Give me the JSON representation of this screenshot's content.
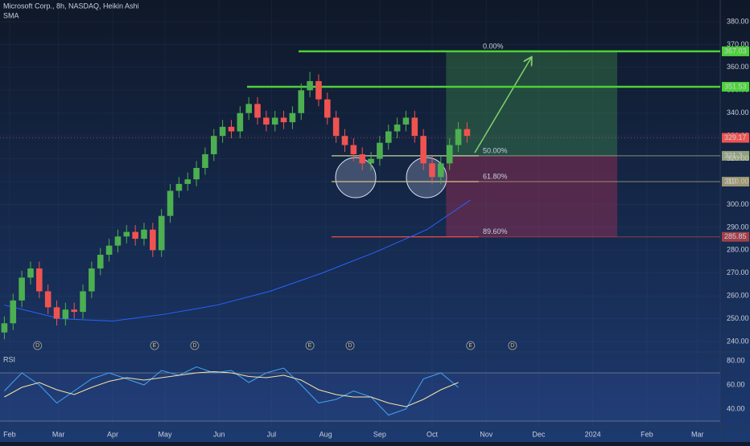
{
  "chart_data": [
    {
      "type": "candlestick",
      "title": "Microsoft Corp., 8h, NASDAQ, Heikin Ashi",
      "indicator": "SMA",
      "xlim": [
        25.5,
        438
      ],
      "xticks": [
        {
          "value": 31,
          "label": "Feb"
        },
        {
          "value": 59,
          "label": "Mar"
        },
        {
          "value": 90,
          "label": "Apr"
        },
        {
          "value": 120,
          "label": "May"
        },
        {
          "value": 151,
          "label": "Jun"
        },
        {
          "value": 181,
          "label": "Jul"
        },
        {
          "value": 212,
          "label": "Aug"
        },
        {
          "value": 243,
          "label": "Sep"
        },
        {
          "value": 273,
          "label": "Oct"
        },
        {
          "value": 304,
          "label": "Nov"
        },
        {
          "value": 334,
          "label": "Dec"
        },
        {
          "value": 365,
          "label": "2024"
        },
        {
          "value": 396,
          "label": "Feb"
        },
        {
          "value": 425,
          "label": "Mar"
        }
      ],
      "ylim": [
        235.8,
        389.5
      ],
      "yticks": [
        {
          "value": 240,
          "label": "240.00"
        },
        {
          "value": 250,
          "label": "250.00"
        },
        {
          "value": 260,
          "label": "260.00"
        },
        {
          "value": 270,
          "label": "270.00"
        },
        {
          "value": 280,
          "label": "280.00"
        },
        {
          "value": 290,
          "label": "290.00"
        },
        {
          "value": 300,
          "label": "300.00"
        },
        {
          "value": 310,
          "label": "310.00"
        },
        {
          "value": 320,
          "label": "320.00"
        },
        {
          "value": 330,
          "label": "330.00"
        },
        {
          "value": 340,
          "label": "340.00"
        },
        {
          "value": 350,
          "label": "350.00"
        },
        {
          "value": 360,
          "label": "360.00"
        },
        {
          "value": 370,
          "label": "370.00"
        },
        {
          "value": 380,
          "label": "380.00"
        }
      ],
      "up_color": "#4caf50",
      "down_color": "#ef5350",
      "x": [
        28,
        33,
        38,
        43,
        48,
        53,
        58,
        63,
        68,
        73,
        78,
        83,
        88,
        93,
        98,
        103,
        108,
        113,
        118,
        123,
        128,
        133,
        138,
        143,
        148,
        153,
        158,
        163,
        168,
        173,
        178,
        183,
        188,
        193,
        198,
        203,
        208,
        213,
        218,
        223,
        228,
        233,
        238,
        243,
        248,
        253,
        258,
        263,
        268,
        273,
        278,
        283,
        288,
        293
      ],
      "open": [
        244,
        248,
        258,
        268,
        272,
        262,
        255,
        250,
        254,
        253,
        262,
        272,
        278,
        282,
        286,
        288,
        285,
        289,
        280,
        295,
        306,
        309,
        311,
        316,
        322,
        330,
        334,
        332,
        340,
        344,
        338,
        335,
        338,
        336,
        340,
        350,
        354,
        346,
        338,
        330,
        326,
        322,
        318,
        320,
        327,
        332,
        335,
        338,
        330,
        318,
        312,
        318,
        326,
        333
      ],
      "high": [
        251,
        261,
        271,
        275,
        275,
        265,
        258,
        257,
        257,
        265,
        275,
        281,
        285,
        289,
        291,
        291,
        292,
        292,
        298,
        309,
        312,
        314,
        319,
        325,
        333,
        337,
        337,
        343,
        347,
        347,
        341,
        341,
        341,
        343,
        353,
        358,
        357,
        349,
        341,
        333,
        329,
        325,
        323,
        330,
        335,
        338,
        341,
        341,
        333,
        321,
        321,
        329,
        336,
        336
      ],
      "low": [
        241,
        245,
        255,
        265,
        259,
        252,
        247,
        247,
        250,
        250,
        259,
        269,
        275,
        279,
        283,
        282,
        282,
        277,
        277,
        292,
        303,
        306,
        308,
        313,
        319,
        327,
        329,
        329,
        337,
        335,
        332,
        332,
        333,
        333,
        337,
        347,
        343,
        335,
        327,
        323,
        319,
        315,
        315,
        317,
        324,
        329,
        332,
        327,
        315,
        309,
        309,
        315,
        323,
        327
      ],
      "close": [
        248,
        258,
        268,
        272,
        262,
        255,
        250,
        254,
        253,
        262,
        272,
        278,
        282,
        286,
        288,
        285,
        289,
        280,
        295,
        306,
        309,
        311,
        316,
        322,
        330,
        334,
        332,
        340,
        344,
        338,
        335,
        338,
        336,
        340,
        350,
        354,
        346,
        338,
        330,
        326,
        322,
        318,
        320,
        327,
        332,
        335,
        338,
        330,
        318,
        312,
        318,
        326,
        333,
        330
      ],
      "sma": {
        "color": "#2962ff",
        "x": [
          28,
          60,
          90,
          120,
          150,
          180,
          210,
          240,
          270,
          295
        ],
        "values": [
          256,
          250,
          249,
          252,
          256,
          262,
          270,
          279,
          289,
          302
        ]
      },
      "current_price": 329.17,
      "levels": [
        {
          "price": 367.03,
          "start": 196.5,
          "color": "#4cd137"
        },
        {
          "price": 351.53,
          "start": 167,
          "color": "#4cd137"
        }
      ],
      "fib": {
        "start": 215.4,
        "end": 299.7,
        "levels": [
          {
            "label": "0.00%",
            "price": 367.03,
            "color": "#4cd137"
          },
          {
            "label": "50.00%",
            "price": 321.3,
            "color": "#c9d49a"
          },
          {
            "label": "61.80%",
            "price": 310,
            "color": "#d4c48a"
          },
          {
            "label": "89.60%",
            "price": 285.85,
            "color": "#e04848"
          }
        ]
      },
      "position": {
        "start": 281,
        "end": 379,
        "entry": 321.3,
        "target": 367.03,
        "stop": 285.85
      },
      "events": [
        {
          "label": "D",
          "x": 47
        },
        {
          "label": "E",
          "x": 114
        },
        {
          "label": "D",
          "x": 137
        },
        {
          "label": "E",
          "x": 203
        },
        {
          "label": "D",
          "x": 226
        },
        {
          "label": "E",
          "x": 295
        },
        {
          "label": "D",
          "x": 319
        }
      ]
    },
    {
      "type": "line",
      "title": "RSI",
      "ylim": [
        26,
        86
      ],
      "yticks": [
        {
          "value": 40,
          "label": "40.00"
        },
        {
          "value": 60,
          "label": "60.00"
        },
        {
          "value": 80,
          "label": "80.00"
        }
      ],
      "bands": [
        70,
        30
      ],
      "x": [
        28,
        38,
        48,
        58,
        68,
        78,
        88,
        98,
        108,
        118,
        128,
        138,
        148,
        158,
        168,
        178,
        188,
        198,
        208,
        218,
        228,
        238,
        248,
        258,
        268,
        278,
        288
      ],
      "series": [
        {
          "color": "#42a5f5",
          "values": [
            55,
            70,
            60,
            45,
            55,
            65,
            70,
            65,
            60,
            72,
            68,
            75,
            70,
            72,
            62,
            70,
            74,
            60,
            45,
            48,
            55,
            50,
            35,
            40,
            65,
            70,
            58
          ]
        },
        {
          "color": "#f5e6a8",
          "values": [
            50,
            58,
            62,
            56,
            52,
            58,
            63,
            66,
            64,
            66,
            68,
            70,
            71,
            70,
            67,
            66,
            68,
            64,
            56,
            52,
            50,
            50,
            45,
            42,
            48,
            56,
            62
          ]
        }
      ]
    }
  ]
}
